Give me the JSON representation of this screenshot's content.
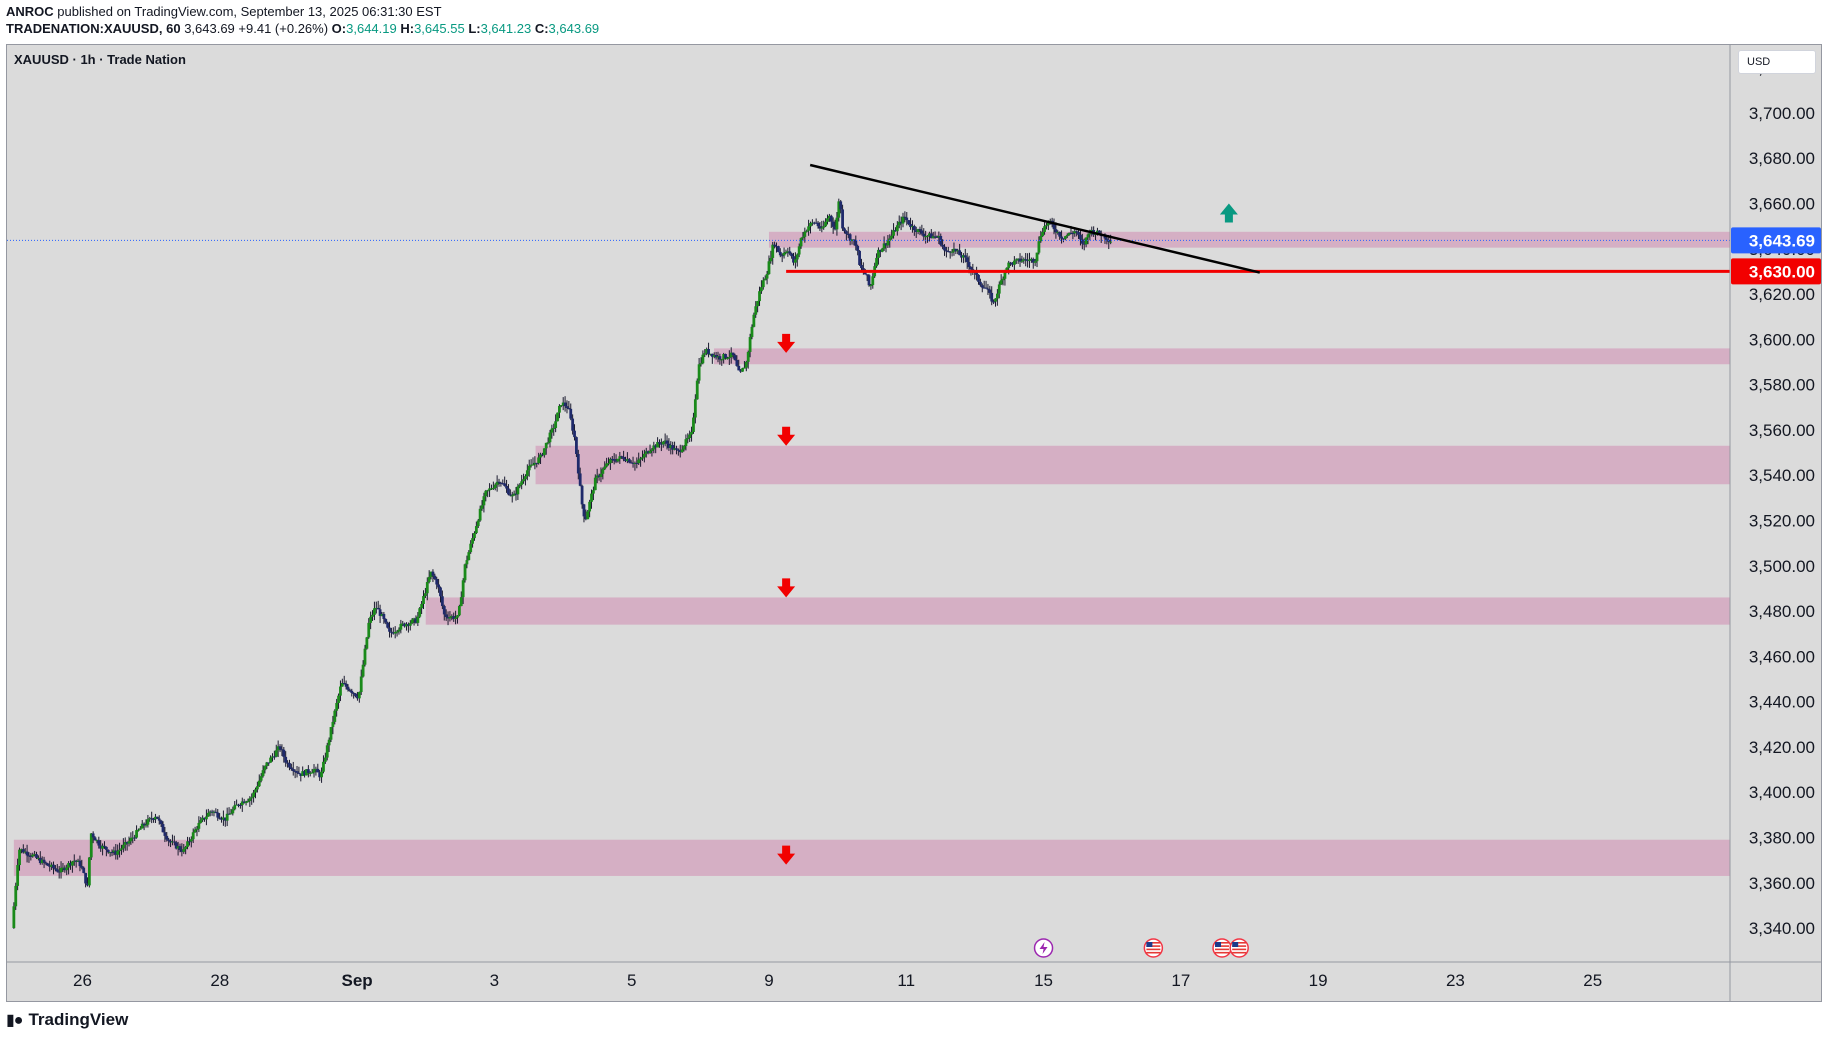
{
  "header": {
    "publisher_line": {
      "author": "ANROC",
      "text": "published on TradingView.com, September 13, 2025 06:31:30 EST"
    },
    "ohlc_line": {
      "symbol": "TRADENATION:XAUUSD, 60",
      "last": "3,643.69",
      "change": "+9.41 (+0.26%)",
      "o_label": "O:",
      "o_value": "3,644.19",
      "h_label": "H:",
      "h_value": "3,645.55",
      "l_label": "L:",
      "l_value": "3,641.23",
      "c_label": "C:",
      "c_value": "3,643.69"
    }
  },
  "chart_title": "XAUUSD · 1h · Trade Nation",
  "currency": "USD",
  "footer": {
    "brand": "TradingView"
  },
  "colors": {
    "background": "#dbdbdb",
    "zone": "#d5afc4",
    "support_line": "#f20000",
    "trendline": "#000000",
    "price_label": "#2962ff",
    "level_label": "#f23645",
    "arrow_down": "#f20000",
    "arrow_up": "#089981",
    "candle_up": "#1a8a1a",
    "candle_down": "#1f2a6b"
  },
  "chart_data": {
    "type": "candlestick",
    "symbol": "XAUUSD",
    "interval": "1h",
    "ylim": [
      3325,
      3730
    ],
    "y_ticks": [
      3720,
      3700,
      3680,
      3660,
      3640,
      3620,
      3600,
      3580,
      3560,
      3540,
      3520,
      3500,
      3480,
      3460,
      3440,
      3420,
      3400,
      3380,
      3360,
      3340
    ],
    "y_tick_labels": [
      "3,720.00",
      "3,700.00",
      "3,680.00",
      "3,660.00",
      "3,640.00",
      "3,620.00",
      "3,600.00",
      "3,580.00",
      "3,560.00",
      "3,540.00",
      "3,520.00",
      "3,500.00",
      "3,480.00",
      "3,460.00",
      "3,440.00",
      "3,420.00",
      "3,400.00",
      "3,380.00",
      "3,360.00",
      "3,340.00"
    ],
    "x_ticks": [
      {
        "day": 26,
        "label": "26"
      },
      {
        "day": 28,
        "label": "28"
      },
      {
        "day": 30,
        "label": "Sep"
      },
      {
        "day": 32,
        "label": "3"
      },
      {
        "day": 34,
        "label": "5"
      },
      {
        "day": 36,
        "label": "9"
      },
      {
        "day": 38,
        "label": "11"
      },
      {
        "day": 40,
        "label": "15"
      },
      {
        "day": 42,
        "label": "17"
      },
      {
        "day": 44,
        "label": "19"
      },
      {
        "day": 46,
        "label": "23"
      },
      {
        "day": 48,
        "label": "25"
      }
    ],
    "xlim": [
      24.9,
      50.0
    ],
    "price_path": [
      [
        25.0,
        3340
      ],
      [
        25.1,
        3375
      ],
      [
        25.3,
        3372
      ],
      [
        25.5,
        3368
      ],
      [
        25.7,
        3365
      ],
      [
        25.9,
        3370
      ],
      [
        26.0,
        3368
      ],
      [
        26.1,
        3358
      ],
      [
        26.15,
        3382
      ],
      [
        26.3,
        3376
      ],
      [
        26.5,
        3373
      ],
      [
        26.7,
        3378
      ],
      [
        26.9,
        3385
      ],
      [
        27.1,
        3390
      ],
      [
        27.2,
        3383
      ],
      [
        27.3,
        3378
      ],
      [
        27.5,
        3374
      ],
      [
        27.7,
        3385
      ],
      [
        27.9,
        3392
      ],
      [
        28.1,
        3388
      ],
      [
        28.3,
        3395
      ],
      [
        28.5,
        3398
      ],
      [
        28.7,
        3412
      ],
      [
        28.9,
        3420
      ],
      [
        29.0,
        3413
      ],
      [
        29.2,
        3408
      ],
      [
        29.4,
        3410
      ],
      [
        29.5,
        3407
      ],
      [
        29.7,
        3435
      ],
      [
        29.8,
        3448
      ],
      [
        29.9,
        3446
      ],
      [
        30.05,
        3442
      ],
      [
        30.2,
        3475
      ],
      [
        30.3,
        3482
      ],
      [
        30.4,
        3477
      ],
      [
        30.5,
        3470
      ],
      [
        30.7,
        3474
      ],
      [
        30.9,
        3476
      ],
      [
        31.1,
        3497
      ],
      [
        31.2,
        3492
      ],
      [
        31.3,
        3478
      ],
      [
        31.5,
        3477
      ],
      [
        31.6,
        3500
      ],
      [
        31.8,
        3522
      ],
      [
        31.9,
        3532
      ],
      [
        32.1,
        3538
      ],
      [
        32.3,
        3530
      ],
      [
        32.5,
        3542
      ],
      [
        32.7,
        3548
      ],
      [
        32.9,
        3562
      ],
      [
        33.0,
        3572
      ],
      [
        33.1,
        3570
      ],
      [
        33.2,
        3556
      ],
      [
        33.3,
        3528
      ],
      [
        33.35,
        3520
      ],
      [
        33.5,
        3538
      ],
      [
        33.7,
        3546
      ],
      [
        33.9,
        3548
      ],
      [
        34.1,
        3545
      ],
      [
        34.3,
        3552
      ],
      [
        34.5,
        3555
      ],
      [
        34.7,
        3550
      ],
      [
        34.9,
        3558
      ],
      [
        35.0,
        3588
      ],
      [
        35.1,
        3595
      ],
      [
        35.3,
        3592
      ],
      [
        35.5,
        3593
      ],
      [
        35.6,
        3584
      ],
      [
        35.7,
        3590
      ],
      [
        35.8,
        3610
      ],
      [
        35.9,
        3622
      ],
      [
        36.0,
        3630
      ],
      [
        36.1,
        3643
      ],
      [
        36.2,
        3637
      ],
      [
        36.3,
        3640
      ],
      [
        36.4,
        3633
      ],
      [
        36.5,
        3645
      ],
      [
        36.6,
        3650
      ],
      [
        36.7,
        3652
      ],
      [
        36.8,
        3648
      ],
      [
        36.9,
        3655
      ],
      [
        37.0,
        3648
      ],
      [
        37.05,
        3663
      ],
      [
        37.1,
        3650
      ],
      [
        37.2,
        3645
      ],
      [
        37.3,
        3642
      ],
      [
        37.35,
        3632
      ],
      [
        37.45,
        3628
      ],
      [
        37.5,
        3622
      ],
      [
        37.6,
        3638
      ],
      [
        37.8,
        3645
      ],
      [
        37.9,
        3650
      ],
      [
        38.0,
        3654
      ],
      [
        38.1,
        3650
      ],
      [
        38.3,
        3646
      ],
      [
        38.5,
        3645
      ],
      [
        38.6,
        3638
      ],
      [
        38.7,
        3640
      ],
      [
        38.9,
        3635
      ],
      [
        39.1,
        3625
      ],
      [
        39.2,
        3622
      ],
      [
        39.3,
        3616
      ],
      [
        39.4,
        3625
      ],
      [
        39.5,
        3633
      ],
      [
        39.7,
        3635
      ],
      [
        39.9,
        3635
      ],
      [
        40.0,
        3648
      ],
      [
        40.1,
        3652
      ],
      [
        40.3,
        3645
      ],
      [
        40.5,
        3648
      ],
      [
        40.6,
        3641
      ],
      [
        40.7,
        3648
      ],
      [
        40.9,
        3646
      ],
      [
        41.0,
        3643.69
      ]
    ],
    "zones": [
      {
        "from_day": 36.0,
        "top": 3647.5,
        "bottom": 3640.5
      },
      {
        "from_day": 35.2,
        "top": 3596,
        "bottom": 3589
      },
      {
        "from_day": 32.6,
        "top": 3553,
        "bottom": 3536
      },
      {
        "from_day": 31.0,
        "top": 3486,
        "bottom": 3474
      },
      {
        "from_day": 25.0,
        "top": 3379,
        "bottom": 3363
      }
    ],
    "support_level": {
      "price": 3630,
      "from_day": 36.25,
      "label": "3,630.00"
    },
    "trendline": {
      "start": [
        36.6,
        3677
      ],
      "end": [
        43.15,
        3629.5
      ]
    },
    "current_price": {
      "price": 3643.69,
      "label": "3,643.69"
    },
    "arrows": [
      {
        "dir": "down",
        "day": 36.25,
        "price": 3598
      },
      {
        "dir": "down",
        "day": 36.25,
        "price": 3557
      },
      {
        "dir": "down",
        "day": 36.25,
        "price": 3490
      },
      {
        "dir": "down",
        "day": 36.25,
        "price": 3372
      },
      {
        "dir": "up",
        "day": 42.7,
        "price": 3656
      }
    ],
    "event_markers": [
      {
        "type": "lightning",
        "day": 40.0
      },
      {
        "type": "us-flag",
        "day": 41.6
      },
      {
        "type": "us-flag",
        "day": 42.6
      },
      {
        "type": "us-flag",
        "day": 42.85
      }
    ]
  }
}
